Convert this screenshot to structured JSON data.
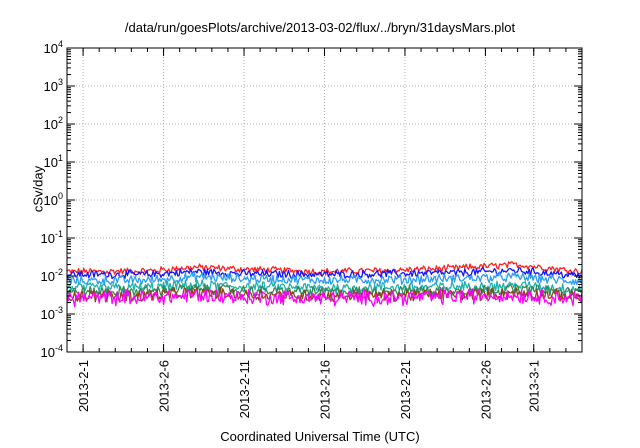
{
  "chart_data": {
    "type": "line",
    "title": "/data/run/goesPlots/archive/2013-03-02/flux/../bryn/31daysMars.plot",
    "xlabel": "Coordinated Universal Time (UTC)",
    "ylabel": "cSv/day",
    "yscale": "log",
    "ylim": [
      0.0001,
      10000
    ],
    "y_ticks": [
      {
        "base": "10",
        "exp": "-4"
      },
      {
        "base": "10",
        "exp": "-3"
      },
      {
        "base": "10",
        "exp": "-2"
      },
      {
        "base": "10",
        "exp": "-1"
      },
      {
        "base": "10",
        "exp": "0"
      },
      {
        "base": "10",
        "exp": "1"
      },
      {
        "base": "10",
        "exp": "2"
      },
      {
        "base": "10",
        "exp": "3"
      },
      {
        "base": "10",
        "exp": "4"
      }
    ],
    "xlim": [
      "2013-01-31",
      "2013-03-04"
    ],
    "x_tick_labels": [
      "2013-2-1",
      "2013-2-6",
      "2013-2-11",
      "2013-2-16",
      "2013-2-21",
      "2013-2-26",
      "2013-3-1"
    ],
    "x_tick_dates": [
      "2013-02-01",
      "2013-02-06",
      "2013-02-11",
      "2013-02-16",
      "2013-02-21",
      "2013-02-26",
      "2013-03-01"
    ],
    "grid": true,
    "series": [
      {
        "color": "#ff2020",
        "level": 0.014,
        "jitter": 0.16,
        "dates": [
          "2013-01-31",
          "2013-02-05",
          "2013-02-08",
          "2013-02-11",
          "2013-02-16",
          "2013-02-20",
          "2013-02-24",
          "2013-02-28",
          "2013-03-04"
        ],
        "values": [
          0.013,
          0.0135,
          0.017,
          0.015,
          0.013,
          0.014,
          0.016,
          0.02,
          0.013
        ]
      },
      {
        "color": "#1515ff",
        "level": 0.0115,
        "jitter": 0.18,
        "dates": [
          "2013-01-31",
          "2013-02-05",
          "2013-02-08",
          "2013-02-11",
          "2013-02-16",
          "2013-02-20",
          "2013-02-24",
          "2013-02-28",
          "2013-03-04"
        ],
        "values": [
          0.011,
          0.011,
          0.013,
          0.0115,
          0.011,
          0.0115,
          0.012,
          0.014,
          0.01
        ]
      },
      {
        "color": "#2a9df4",
        "level": 0.008,
        "jitter": 0.22,
        "dates": [
          "2013-01-31",
          "2013-02-05",
          "2013-02-08",
          "2013-02-11",
          "2013-02-16",
          "2013-02-20",
          "2013-02-24",
          "2013-02-28",
          "2013-03-04"
        ],
        "values": [
          0.0075,
          0.0078,
          0.0095,
          0.0085,
          0.0078,
          0.008,
          0.0085,
          0.0095,
          0.007
        ]
      },
      {
        "color": "#20b2aa",
        "level": 0.005,
        "jitter": 0.24,
        "dates": [
          "2013-01-31",
          "2013-02-05",
          "2013-02-08",
          "2013-02-11",
          "2013-02-16",
          "2013-02-20",
          "2013-02-24",
          "2013-02-28",
          "2013-03-04"
        ],
        "values": [
          0.0048,
          0.005,
          0.0058,
          0.0052,
          0.0048,
          0.005,
          0.0052,
          0.0056,
          0.0045
        ]
      },
      {
        "color": "#2e8b57",
        "level": 0.004,
        "jitter": 0.24,
        "dates": [
          "2013-01-31",
          "2013-02-05",
          "2013-02-08",
          "2013-02-11",
          "2013-02-16",
          "2013-02-20",
          "2013-02-24",
          "2013-02-28",
          "2013-03-04"
        ],
        "values": [
          0.0038,
          0.004,
          0.0046,
          0.0041,
          0.0038,
          0.004,
          0.0042,
          0.0045,
          0.0036
        ]
      },
      {
        "color": "#8b4513",
        "level": 0.0032,
        "jitter": 0.28,
        "dates": [
          "2013-01-31",
          "2013-02-05",
          "2013-02-08",
          "2013-02-11",
          "2013-02-16",
          "2013-02-20",
          "2013-02-24",
          "2013-02-28",
          "2013-03-04"
        ],
        "values": [
          0.003,
          0.0031,
          0.0036,
          0.0033,
          0.003,
          0.0031,
          0.0033,
          0.0035,
          0.0029
        ]
      },
      {
        "color": "#ff00ff",
        "level": 0.0027,
        "jitter": 0.36,
        "dates": [
          "2013-01-31",
          "2013-02-05",
          "2013-02-08",
          "2013-02-11",
          "2013-02-16",
          "2013-02-20",
          "2013-02-24",
          "2013-02-28",
          "2013-03-04"
        ],
        "values": [
          0.0026,
          0.0027,
          0.0031,
          0.0028,
          0.0026,
          0.0027,
          0.0029,
          0.0031,
          0.0025
        ]
      }
    ]
  }
}
